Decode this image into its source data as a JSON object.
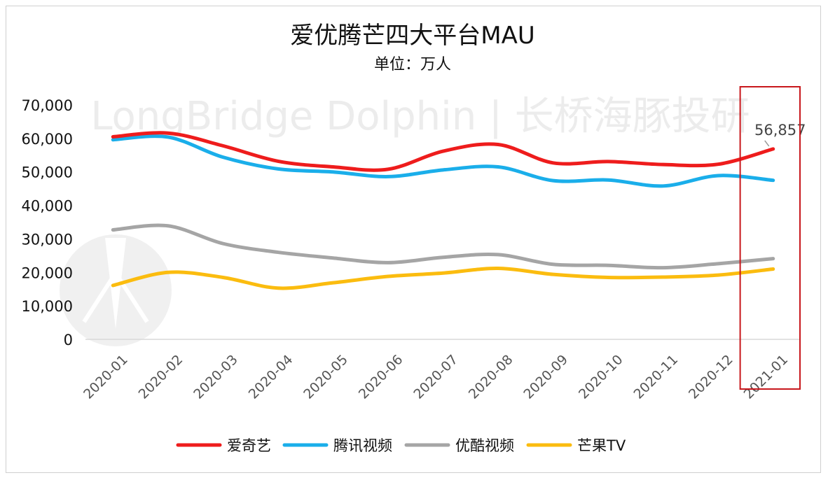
{
  "chart_data": {
    "type": "line",
    "title": "爱优腾芒四大平台MAU",
    "subtitle": "单位：万人",
    "watermark": "LongBridge Dolphin | 长桥海豚投研",
    "categories": [
      "2020-01",
      "2020-02",
      "2020-03",
      "2020-04",
      "2020-05",
      "2020-06",
      "2020-07",
      "2020-08",
      "2020-09",
      "2020-10",
      "2020-11",
      "2020-12",
      "2021-01"
    ],
    "y_ticks": [
      "70,000",
      "60,000",
      "50,000",
      "40,000",
      "30,000",
      "20,000",
      "10,000",
      "0"
    ],
    "ylim": [
      0,
      70000
    ],
    "legend_position": "bottom",
    "series": [
      {
        "name": "爱奇艺",
        "color": "#ee1c1c",
        "values": [
          60500,
          61600,
          57800,
          53200,
          51500,
          50800,
          56200,
          58200,
          52700,
          53100,
          52200,
          52300,
          56857
        ]
      },
      {
        "name": "腾讯视频",
        "color": "#1aaeea",
        "values": [
          59600,
          60400,
          54400,
          50900,
          50000,
          48600,
          50600,
          51500,
          47400,
          47600,
          45800,
          48900,
          47500
        ]
      },
      {
        "name": "优酷视频",
        "color": "#a5a5a5",
        "values": [
          32700,
          33900,
          28600,
          26000,
          24300,
          22900,
          24500,
          25300,
          22400,
          22100,
          21400,
          22600,
          24100
        ]
      },
      {
        "name": "芒果TV",
        "color": "#fbbc0f",
        "values": [
          16100,
          20000,
          18500,
          15300,
          16900,
          18800,
          19800,
          21200,
          19400,
          18500,
          18600,
          19200,
          21000
        ]
      }
    ],
    "annotation": {
      "label": "56,857",
      "series": 0,
      "index": 12
    },
    "highlight_index": 12,
    "highlight_color": "#c8171c"
  }
}
